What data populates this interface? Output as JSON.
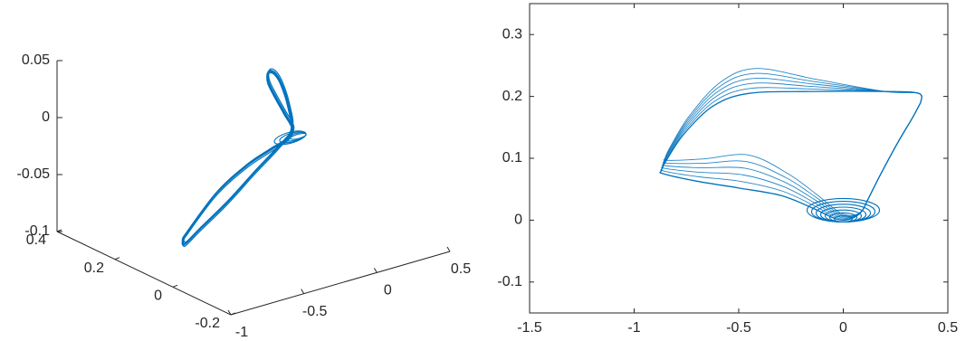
{
  "chart_data": [
    {
      "type": "line",
      "title": "",
      "xlabel": "",
      "ylabel": "",
      "zlabel": "",
      "x_ticks": [
        "-1",
        "-0.5",
        "0",
        "0.5"
      ],
      "y_ticks": [
        "-0.2",
        "0",
        "0.2",
        "0.4"
      ],
      "z_ticks": [
        "-0.1",
        "-0.05",
        "0",
        "0.05"
      ],
      "xlim": [
        -1,
        0.5
      ],
      "ylim": [
        -0.2,
        0.4
      ],
      "zlim": [
        -0.1,
        0.05
      ],
      "grid": false,
      "color": "#0072BD",
      "series": [
        {
          "points_xyz": [
            [
              -0.83,
              0.05,
              -0.069
            ],
            [
              -0.55,
              0.08,
              -0.045
            ],
            [
              -0.3,
              0.1,
              -0.032
            ],
            [
              -0.1,
              0.12,
              -0.028
            ],
            [
              0.05,
              0.14,
              -0.027
            ],
            [
              0.16,
              0.17,
              -0.025
            ],
            [
              0.2,
              0.22,
              -0.018
            ],
            [
              0.2,
              0.25,
              -0.008
            ],
            [
              0.19,
              0.27,
              0.003
            ],
            [
              0.19,
              0.27,
              0.012
            ],
            [
              0.21,
              0.26,
              0.012
            ],
            [
              0.22,
              0.24,
              0.004
            ],
            [
              0.21,
              0.21,
              -0.012
            ],
            [
              0.17,
              0.18,
              -0.027
            ],
            [
              0.02,
              0.15,
              -0.033
            ],
            [
              -0.2,
              0.12,
              -0.043
            ],
            [
              -0.45,
              0.09,
              -0.057
            ],
            [
              -0.7,
              0.06,
              -0.068
            ],
            [
              -0.84,
              0.04,
              -0.073
            ],
            [
              -0.83,
              0.05,
              -0.069
            ]
          ]
        }
      ]
    },
    {
      "type": "line",
      "title": "",
      "xlabel": "",
      "ylabel": "",
      "x_ticks": [
        "-1.5",
        "-1",
        "-0.5",
        "0",
        "0.5"
      ],
      "y_ticks": [
        "-0.1",
        "0",
        "0.1",
        "0.2",
        "0.3"
      ],
      "xlim": [
        -1.5,
        0.5
      ],
      "ylim": [
        -0.15,
        0.35
      ],
      "grid": false,
      "color": "#0072BD",
      "series": [
        {
          "points": [
            [
              0.37,
              0.19
            ],
            [
              0.36,
              0.205
            ],
            [
              0.2,
              0.208
            ],
            [
              -0.15,
              0.208
            ],
            [
              -0.45,
              0.205
            ],
            [
              -0.62,
              0.185
            ],
            [
              -0.76,
              0.14
            ],
            [
              -0.84,
              0.1
            ],
            [
              -0.87,
              0.08
            ],
            [
              -0.86,
              0.075
            ],
            [
              -0.7,
              0.063
            ],
            [
              -0.5,
              0.052
            ],
            [
              -0.3,
              0.04
            ],
            [
              -0.15,
              0.02
            ],
            [
              -0.05,
              0.004
            ],
            [
              0.0,
              0.0
            ],
            [
              0.05,
              0.004
            ],
            [
              0.09,
              0.015
            ],
            [
              0.12,
              0.035
            ],
            [
              0.18,
              0.075
            ],
            [
              0.26,
              0.125
            ],
            [
              0.33,
              0.165
            ],
            [
              0.37,
              0.19
            ]
          ]
        }
      ]
    }
  ]
}
